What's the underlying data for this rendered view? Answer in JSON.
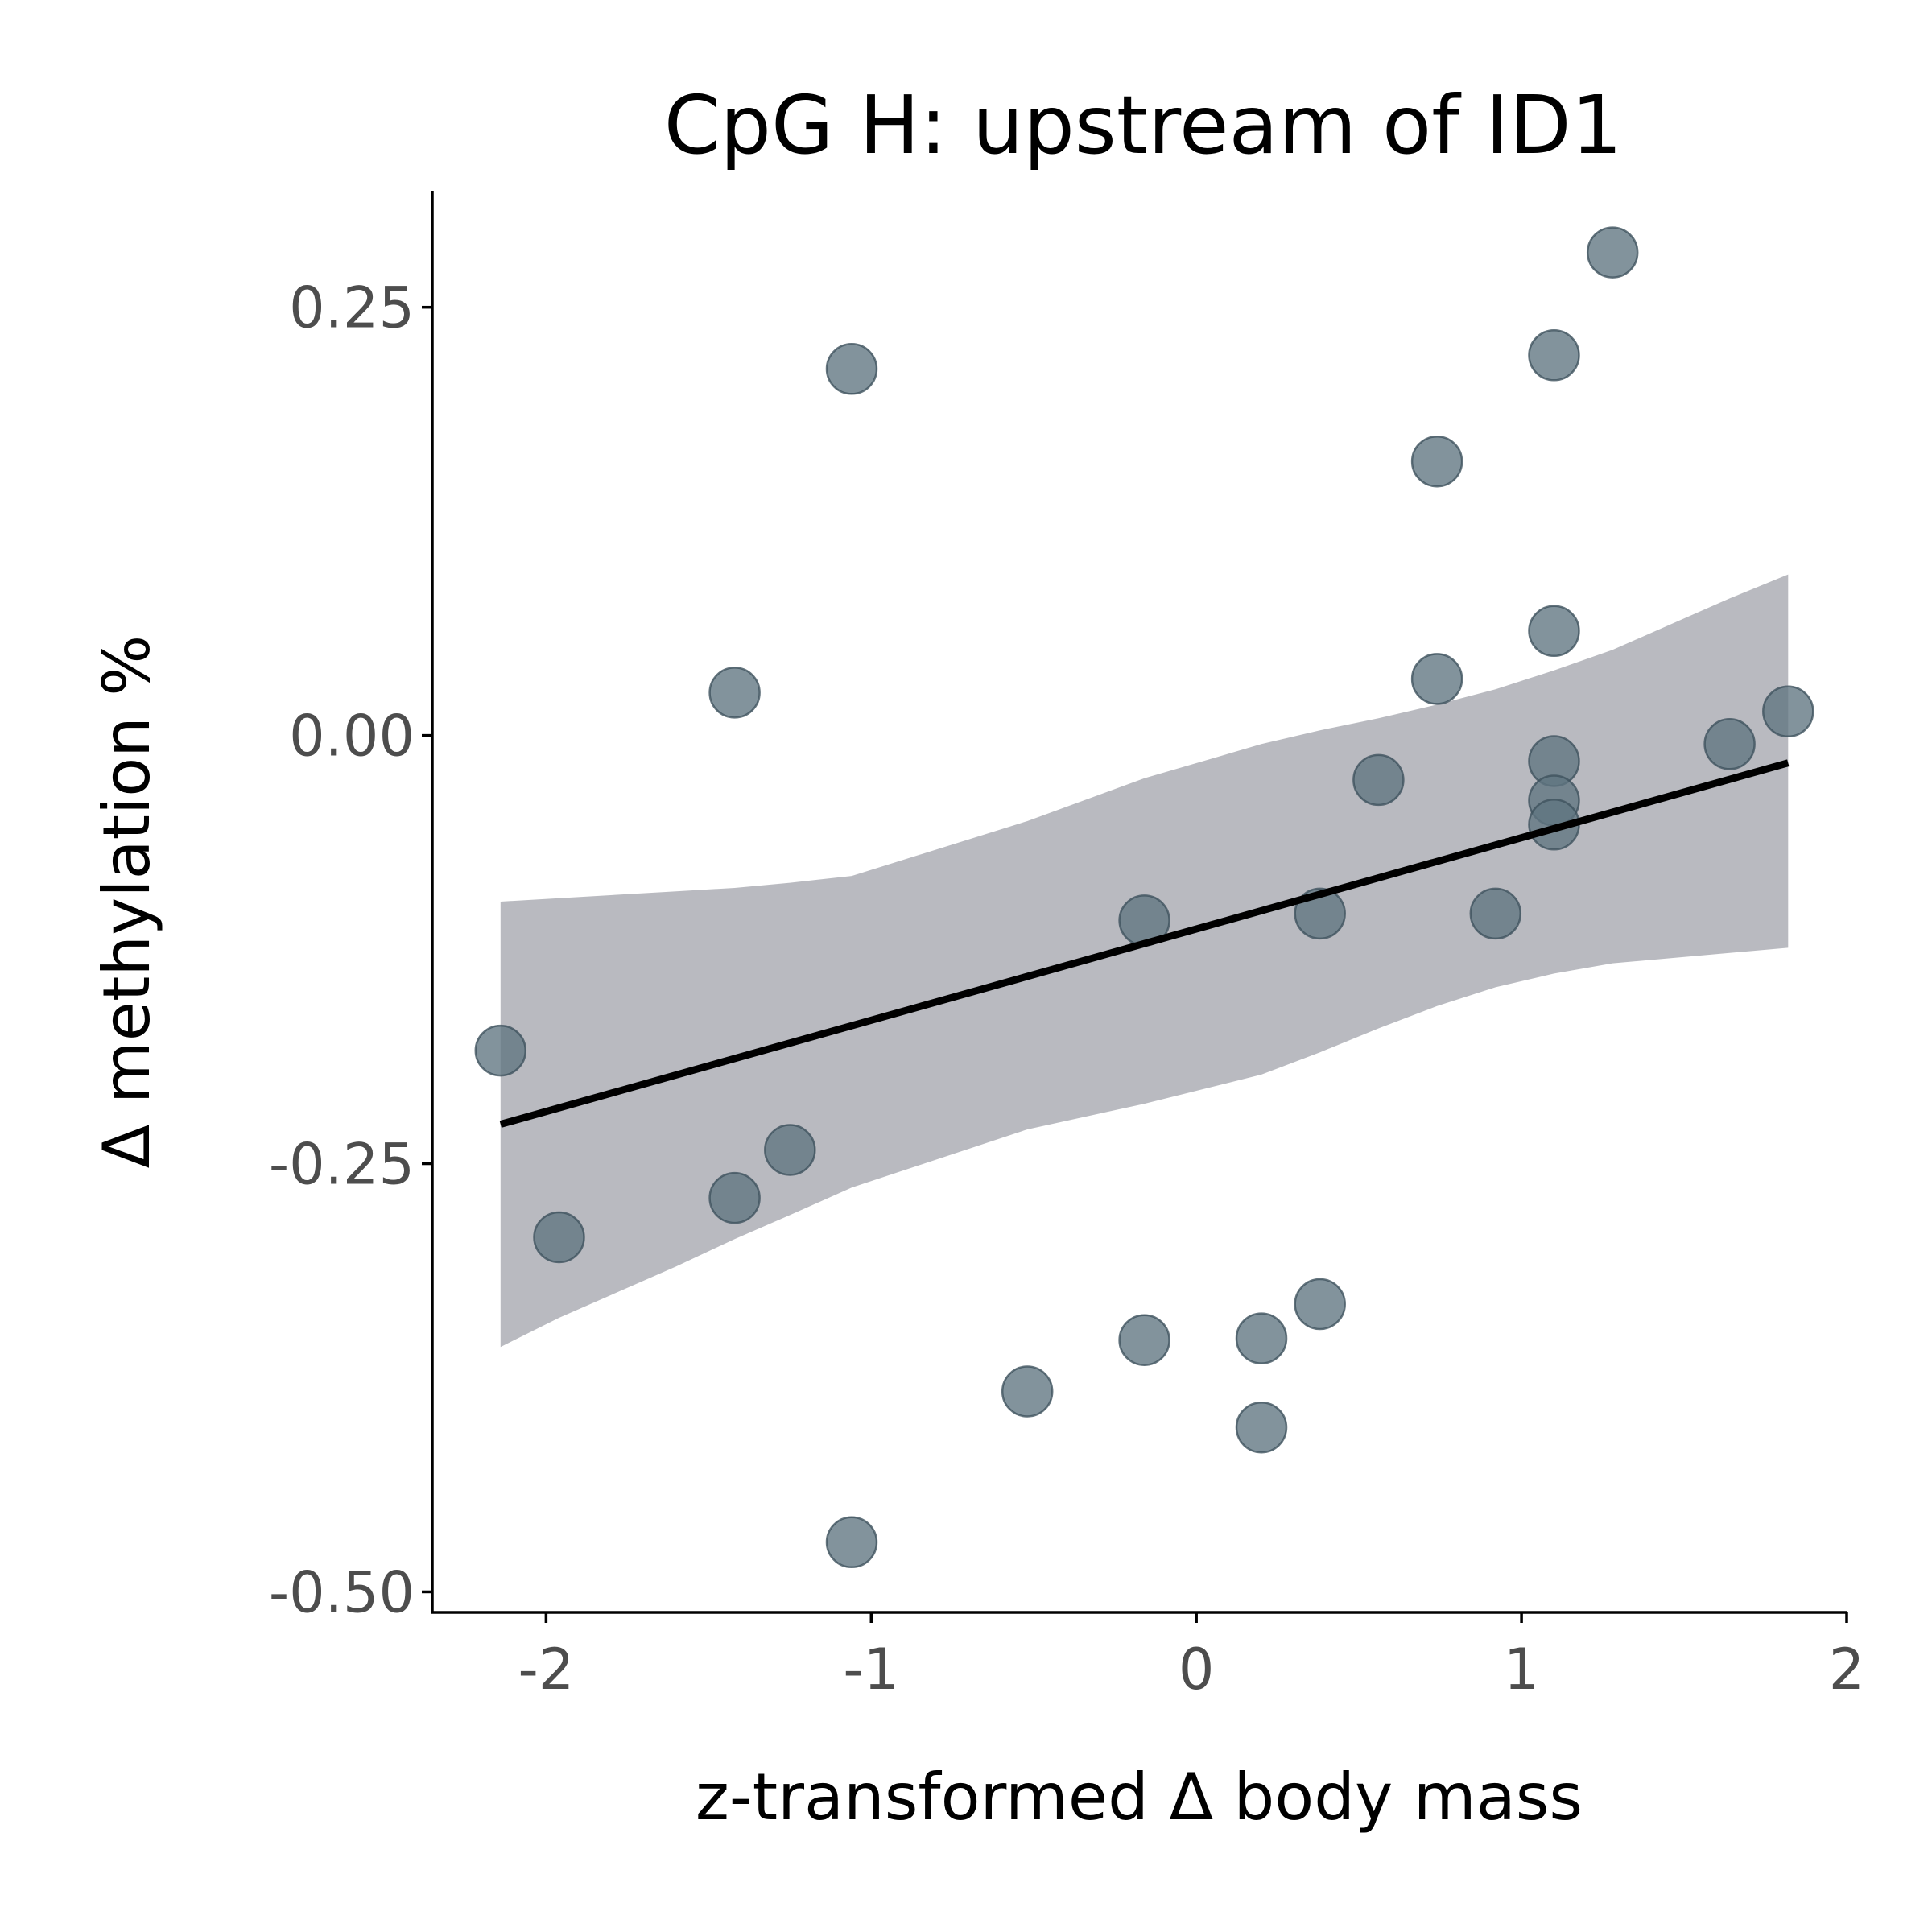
{
  "chart_data": {
    "type": "scatter",
    "title": "CpG H: upstream of ID1",
    "xlabel": "z-transformed Δ body mass",
    "ylabel": "Δ methylation %",
    "xlim": [
      -2.35,
      2.0
    ],
    "ylim": [
      -0.512,
      0.318
    ],
    "x_ticks": [
      -2,
      -1,
      0,
      1,
      2
    ],
    "x_tick_labels": [
      "-2",
      "-1",
      "0",
      "1",
      "2"
    ],
    "y_ticks": [
      -0.5,
      -0.25,
      0.0,
      0.25
    ],
    "y_tick_labels": [
      "-0.50",
      "-0.25",
      "0.00",
      "0.25"
    ],
    "grid": false,
    "legend": "none",
    "colors": {
      "point": "#5f7580",
      "point_edge": "#3e535e",
      "band": "#a7a9b0",
      "fit_line": "#000000"
    },
    "series": [
      {
        "points": [
          {
            "x": -2.14,
            "y": -0.184
          },
          {
            "x": -1.96,
            "y": -0.293
          },
          {
            "x": -1.42,
            "y": 0.025
          },
          {
            "x": -1.42,
            "y": -0.27
          },
          {
            "x": -1.25,
            "y": -0.242
          },
          {
            "x": -1.06,
            "y": 0.214
          },
          {
            "x": -1.06,
            "y": -0.471
          },
          {
            "x": -0.52,
            "y": -0.383
          },
          {
            "x": -0.16,
            "y": -0.108
          },
          {
            "x": -0.16,
            "y": -0.353
          },
          {
            "x": 0.2,
            "y": -0.352
          },
          {
            "x": 0.2,
            "y": -0.404
          },
          {
            "x": 0.38,
            "y": -0.104
          },
          {
            "x": 0.38,
            "y": -0.332
          },
          {
            "x": 0.56,
            "y": -0.026
          },
          {
            "x": 0.74,
            "y": 0.16
          },
          {
            "x": 0.74,
            "y": 0.033
          },
          {
            "x": 0.92,
            "y": -0.104
          },
          {
            "x": 1.1,
            "y": 0.222
          },
          {
            "x": 1.1,
            "y": 0.061
          },
          {
            "x": 1.1,
            "y": -0.015
          },
          {
            "x": 1.1,
            "y": -0.038
          },
          {
            "x": 1.1,
            "y": -0.052
          },
          {
            "x": 1.28,
            "y": 0.282
          },
          {
            "x": 1.64,
            "y": -0.005
          },
          {
            "x": 1.82,
            "y": 0.014
          }
        ]
      }
    ],
    "fit": {
      "x": [
        -2.14,
        1.82
      ],
      "y": [
        -0.227,
        -0.016
      ]
    },
    "confidence_band": {
      "x": [
        -2.14,
        -1.96,
        -1.6,
        -1.42,
        -1.25,
        -1.06,
        -0.52,
        -0.16,
        0.2,
        0.38,
        0.56,
        0.74,
        0.92,
        1.1,
        1.28,
        1.64,
        1.82
      ],
      "lower": [
        -0.357,
        -0.34,
        -0.31,
        -0.294,
        -0.28,
        -0.264,
        -0.23,
        -0.215,
        -0.198,
        -0.185,
        -0.171,
        -0.158,
        -0.147,
        -0.139,
        -0.133,
        -0.127,
        -0.124
      ],
      "upper": [
        -0.097,
        -0.095,
        -0.091,
        -0.089,
        -0.086,
        -0.082,
        -0.05,
        -0.025,
        -0.005,
        0.003,
        0.01,
        0.018,
        0.027,
        0.038,
        0.05,
        0.08,
        0.094
      ]
    }
  }
}
